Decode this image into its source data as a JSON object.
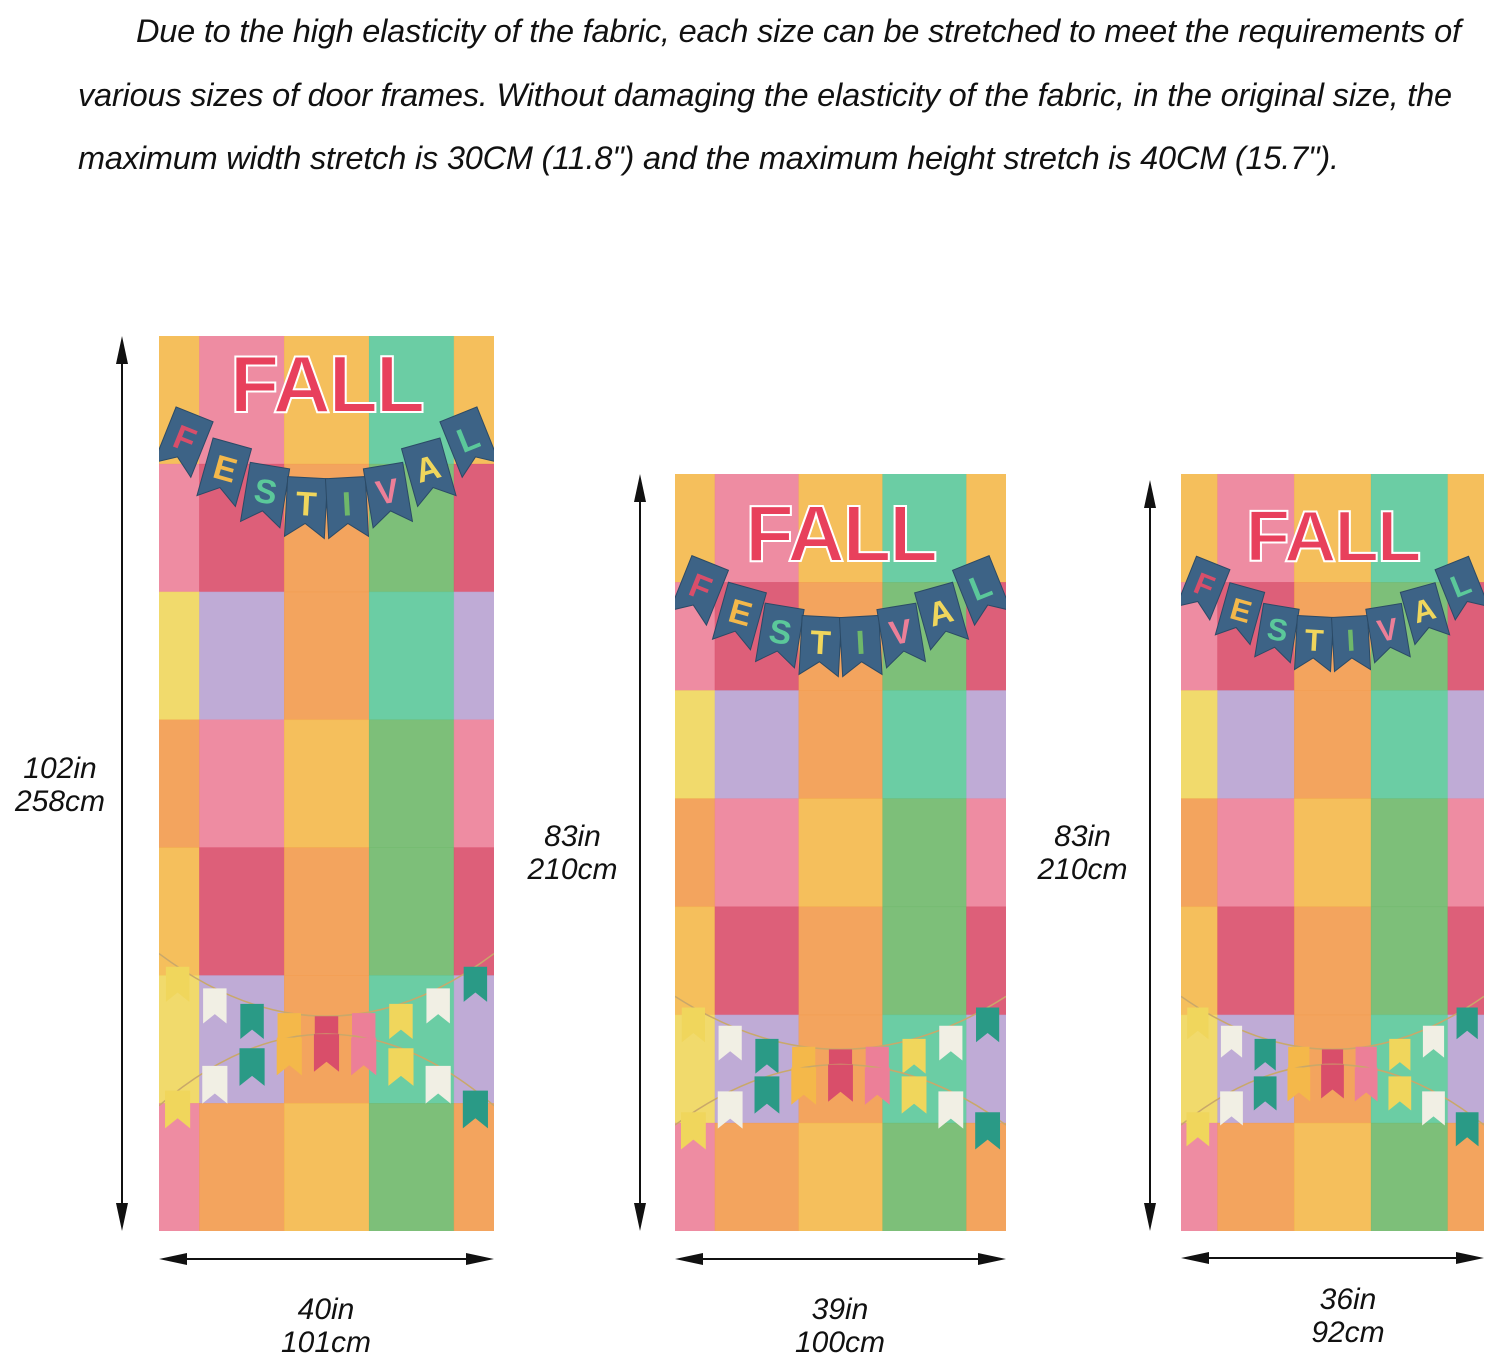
{
  "description": "Due to the high elasticity of the fabric, each size can be stretched to meet the requirements of various sizes of door frames. Without damaging the elasticity of the fabric, in the original size, the maximum width stretch is 30CM (11.8\") and the maximum height stretch is 40CM (15.7\").",
  "colors": {
    "banner": "#3d6386",
    "fall_text": "#e8405c",
    "checks": [
      "#f4b84a",
      "#ec7f98",
      "#b8a2d2",
      "#5bc89a",
      "#f0d65c",
      "#d94e6a",
      "#f29a4c",
      "#6fb86a"
    ]
  },
  "doors": [
    {
      "id": "large",
      "title_top": "FALL",
      "title_bottom": [
        "F",
        "E",
        "S",
        "T",
        "I",
        "V",
        "A",
        "L"
      ],
      "height_in": "102in",
      "height_cm": "258cm",
      "width_in": "40in",
      "width_cm": "101cm"
    },
    {
      "id": "medium",
      "title_top": "FALL",
      "title_bottom": [
        "F",
        "E",
        "S",
        "T",
        "I",
        "V",
        "A",
        "L"
      ],
      "height_in": "83in",
      "height_cm": "210cm",
      "width_in": "39in",
      "width_cm": "100cm"
    },
    {
      "id": "small",
      "title_top": "FALL",
      "title_bottom": [
        "F",
        "E",
        "S",
        "T",
        "I",
        "V",
        "A",
        "L"
      ],
      "height_in": "83in",
      "height_cm": "210cm",
      "width_in": "36in",
      "width_cm": "92cm"
    }
  ]
}
